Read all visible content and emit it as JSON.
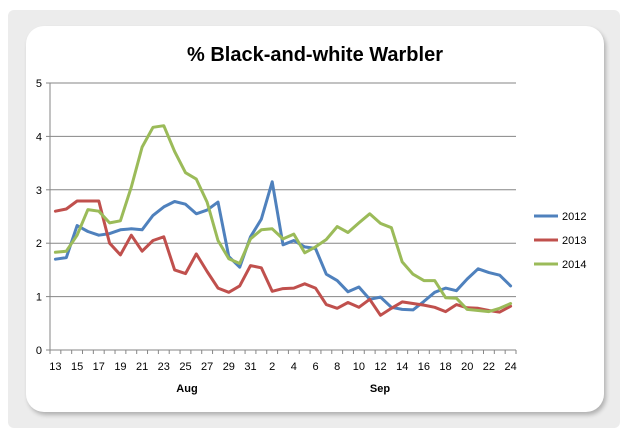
{
  "chart_data": {
    "type": "line",
    "title": "% Black-and-white Warbler",
    "xlabel": "",
    "ylabel": "",
    "ylim": [
      0,
      5
    ],
    "yticks": [
      "0",
      "1",
      "2",
      "3",
      "4",
      "5"
    ],
    "x_tick_labels": [
      "13",
      "15",
      "17",
      "19",
      "21",
      "23",
      "25",
      "27",
      "29",
      "31",
      "2",
      "4",
      "6",
      "8",
      "10",
      "12",
      "14",
      "16",
      "18",
      "20",
      "22",
      "24"
    ],
    "month_labels": [
      "Aug",
      "Sep"
    ],
    "grid": true,
    "legend_position": "right",
    "series": [
      {
        "name": "2012",
        "color": "#4f81bd",
        "values": [
          1.7,
          1.73,
          2.33,
          2.22,
          2.15,
          2.18,
          2.25,
          2.27,
          2.25,
          2.52,
          2.68,
          2.78,
          2.73,
          2.55,
          2.62,
          2.77,
          1.75,
          1.55,
          2.12,
          2.45,
          3.15,
          1.97,
          2.05,
          1.93,
          1.9,
          1.42,
          1.3,
          1.09,
          1.18,
          0.95,
          0.99,
          0.8,
          0.76,
          0.75,
          0.91,
          1.08,
          1.16,
          1.11,
          1.33,
          1.52,
          1.45,
          1.4,
          1.2
        ]
      },
      {
        "name": "2013",
        "color": "#c0504d",
        "values": [
          2.6,
          2.64,
          2.79,
          2.79,
          2.79,
          2.0,
          1.78,
          2.15,
          1.85,
          2.05,
          2.12,
          1.5,
          1.43,
          1.8,
          1.47,
          1.16,
          1.08,
          1.2,
          1.58,
          1.54,
          1.1,
          1.15,
          1.16,
          1.24,
          1.16,
          0.85,
          0.78,
          0.89,
          0.8,
          0.95,
          0.65,
          0.78,
          0.9,
          0.87,
          0.84,
          0.8,
          0.72,
          0.85,
          0.79,
          0.78,
          0.74,
          0.71,
          0.82
        ]
      },
      {
        "name": "2014",
        "color": "#9bbb59",
        "values": [
          1.83,
          1.85,
          2.15,
          2.63,
          2.6,
          2.38,
          2.42,
          3.05,
          3.8,
          4.17,
          4.2,
          3.72,
          3.32,
          3.2,
          2.77,
          2.05,
          1.71,
          1.62,
          2.08,
          2.25,
          2.27,
          2.08,
          2.17,
          1.82,
          1.93,
          2.07,
          2.31,
          2.2,
          2.38,
          2.55,
          2.37,
          2.29,
          1.65,
          1.42,
          1.3,
          1.3,
          0.98,
          0.97,
          0.76,
          0.74,
          0.72,
          0.78,
          0.87
        ]
      }
    ]
  }
}
